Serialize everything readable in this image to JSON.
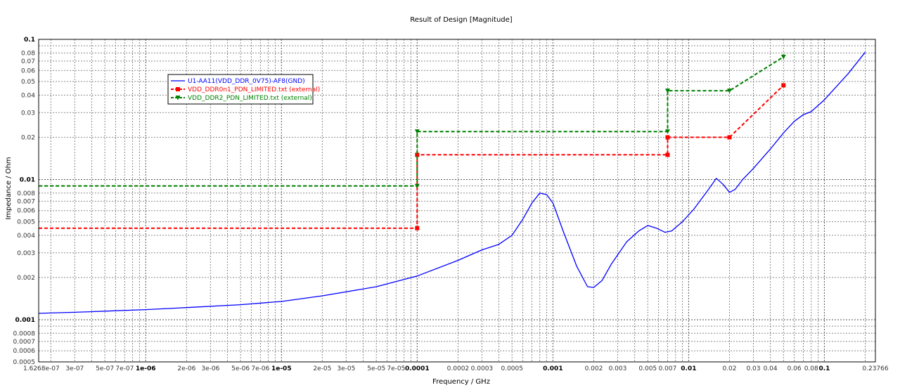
{
  "chart_data": {
    "type": "line",
    "title": "Result of Design [Magnitude]",
    "xlabel": "Frequency / GHz",
    "ylabel": "Impedance / Ohm",
    "x_scale": "log",
    "y_scale": "log",
    "xlim": [
      1.6268e-07,
      0.23766
    ],
    "ylim": [
      0.0005,
      0.1
    ],
    "grid": true,
    "legend_position": "top-left",
    "x_ticks": [
      "1.6268e-07",
      "3e-07",
      "5e-07",
      "7e-07",
      "1e-06",
      "2e-06",
      "3e-06",
      "5e-06",
      "7e-06",
      "1e-05",
      "2e-05",
      "3e-05",
      "5e-05",
      "7e-05",
      "0.0001",
      "0.0002",
      "0.0003",
      "0.0005",
      "0.001",
      "0.002",
      "0.003",
      "0.005",
      "0.007",
      "0.01",
      "0.02",
      "0.03",
      "0.04",
      "0.06",
      "0.08",
      "0.1",
      "0.23766"
    ],
    "y_ticks": [
      "0.0005",
      "0.0006",
      "0.0007",
      "0.0008",
      "0.001",
      "0.002",
      "0.003",
      "0.004",
      "0.005",
      "0.006",
      "0.007",
      "0.008",
      "0.01",
      "0.02",
      "0.03",
      "0.04",
      "0.05",
      "0.06",
      "0.07",
      "0.08",
      "0.1"
    ],
    "series": [
      {
        "name": "U1-AA11(VDD_DDR_0V75)-AF8(GND)",
        "color": "#0000ff",
        "style": "solid",
        "marker": "none",
        "x": [
          1.6268e-07,
          3e-07,
          5e-07,
          1e-06,
          2e-06,
          5e-06,
          1e-05,
          2e-05,
          5e-05,
          0.0001,
          0.0002,
          0.0003,
          0.0004,
          0.0005,
          0.0006,
          0.0007,
          0.0008,
          0.0009,
          0.001,
          0.0012,
          0.0015,
          0.0018,
          0.002,
          0.0023,
          0.0027,
          0.0035,
          0.0043,
          0.005,
          0.0058,
          0.0067,
          0.0075,
          0.009,
          0.011,
          0.014,
          0.016,
          0.018,
          0.02,
          0.022,
          0.025,
          0.03,
          0.04,
          0.05,
          0.06,
          0.07,
          0.08,
          0.1,
          0.15,
          0.2
        ],
        "y": [
          0.00111,
          0.00113,
          0.00115,
          0.00118,
          0.00122,
          0.00128,
          0.00135,
          0.00148,
          0.00172,
          0.00205,
          0.00265,
          0.00315,
          0.00345,
          0.004,
          0.0052,
          0.0068,
          0.008,
          0.0078,
          0.0068,
          0.0042,
          0.0024,
          0.00172,
          0.0017,
          0.0019,
          0.0025,
          0.0036,
          0.0043,
          0.0047,
          0.0045,
          0.0042,
          0.0043,
          0.005,
          0.0062,
          0.0085,
          0.0102,
          0.0092,
          0.0081,
          0.0085,
          0.01,
          0.012,
          0.0165,
          0.0215,
          0.026,
          0.029,
          0.0305,
          0.037,
          0.057,
          0.081
        ]
      },
      {
        "name": "VDD_DDR0n1_PDN_LIMITED.txt (external)",
        "color": "#ff0000",
        "style": "dashed",
        "marker": "square",
        "points": [
          {
            "x": 1.6268e-07,
            "y": 0.0045,
            "marker": false
          },
          {
            "x": 0.0001,
            "y": 0.0045,
            "marker": true
          },
          {
            "x": 0.0001,
            "y": 0.015,
            "marker": true
          },
          {
            "x": 0.007,
            "y": 0.015,
            "marker": true
          },
          {
            "x": 0.007,
            "y": 0.02,
            "marker": true
          },
          {
            "x": 0.02,
            "y": 0.02,
            "marker": true
          },
          {
            "x": 0.05,
            "y": 0.047,
            "marker": true
          }
        ]
      },
      {
        "name": "VDD_DDR2_PDN_LIMITED.txt (external)",
        "color": "#008000",
        "style": "dashed",
        "marker": "triangle-down",
        "points": [
          {
            "x": 1.6268e-07,
            "y": 0.009,
            "marker": false
          },
          {
            "x": 0.0001,
            "y": 0.009,
            "marker": true
          },
          {
            "x": 0.0001,
            "y": 0.022,
            "marker": true
          },
          {
            "x": 0.007,
            "y": 0.022,
            "marker": true
          },
          {
            "x": 0.007,
            "y": 0.043,
            "marker": true
          },
          {
            "x": 0.02,
            "y": 0.043,
            "marker": true
          },
          {
            "x": 0.05,
            "y": 0.075,
            "marker": true
          }
        ]
      }
    ]
  }
}
